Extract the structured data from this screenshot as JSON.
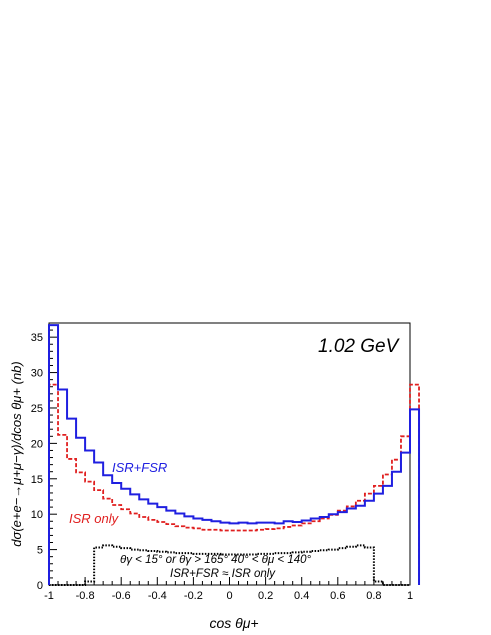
{
  "chart_data": {
    "type": "line",
    "title": "1.02 GeV",
    "xlabel": "cos θμ+",
    "ylabel": "dσ(e+e−→μ+μ−γ)/dcos θμ+ (nb)",
    "xlim": [
      -1,
      1
    ],
    "ylim": [
      0,
      37
    ],
    "xticks": [
      -1,
      -0.8,
      -0.6,
      -0.4,
      -0.2,
      0,
      0.2,
      0.4,
      0.6,
      0.8,
      1
    ],
    "xtick_labels": [
      "-1",
      "-0.8",
      "-0.6",
      "-0.4",
      "-0.2",
      "0",
      "0.2",
      "0.4",
      "0.6",
      "0.8",
      "1"
    ],
    "yticks": [
      0,
      5,
      10,
      15,
      20,
      25,
      30,
      35
    ],
    "grid": false,
    "bin_edges_start": -1.0,
    "bin_width": 0.05,
    "series": [
      {
        "name": "ISR+FSR",
        "color": "#1f1fe0",
        "style": "solid",
        "values": [
          36.7,
          27.6,
          23.5,
          20.8,
          19.0,
          17.3,
          15.5,
          14.4,
          13.6,
          12.8,
          12.1,
          11.5,
          11.0,
          10.5,
          10.1,
          9.7,
          9.4,
          9.2,
          9.0,
          8.8,
          8.7,
          8.8,
          8.7,
          8.8,
          8.8,
          8.7,
          9.0,
          8.9,
          9.1,
          9.4,
          9.6,
          10.0,
          10.3,
          10.8,
          11.2,
          11.9,
          12.9,
          14.0,
          16.0,
          18.7,
          24.8
        ]
      },
      {
        "name": "ISR only",
        "color": "#e01f1f",
        "style": "dashed",
        "values": [
          28.3,
          21.2,
          17.8,
          15.9,
          14.6,
          13.4,
          12.2,
          11.3,
          10.7,
          10.1,
          9.6,
          9.2,
          8.9,
          8.6,
          8.3,
          8.1,
          8.0,
          7.8,
          7.8,
          7.7,
          7.7,
          7.7,
          7.7,
          7.8,
          7.9,
          8.0,
          8.2,
          8.4,
          8.7,
          9.0,
          9.4,
          9.9,
          10.5,
          11.1,
          11.9,
          12.9,
          14.0,
          15.6,
          17.7,
          21.0,
          28.3
        ]
      },
      {
        "name": "cut",
        "color": "#000000",
        "style": "dotted",
        "values": [
          0,
          0,
          0,
          0,
          0.5,
          5.3,
          5.6,
          5.4,
          5.2,
          5.0,
          4.9,
          4.8,
          4.7,
          4.6,
          4.5,
          4.5,
          4.4,
          4.4,
          4.4,
          4.3,
          4.3,
          4.3,
          4.3,
          4.4,
          4.4,
          4.5,
          4.5,
          4.6,
          4.7,
          4.8,
          4.9,
          5.0,
          5.2,
          5.4,
          5.6,
          5.3,
          0.5,
          0,
          0,
          0
        ]
      }
    ],
    "annotations": {
      "energy": "1.02 GeV",
      "isr_fsr": "ISR+FSR",
      "isr_only": "ISR only",
      "cuts": "θγ < 15° or θγ > 165°  40° < θμ < 140°",
      "cuts_relation": "ISR+FSR ≈ ISR only"
    }
  }
}
